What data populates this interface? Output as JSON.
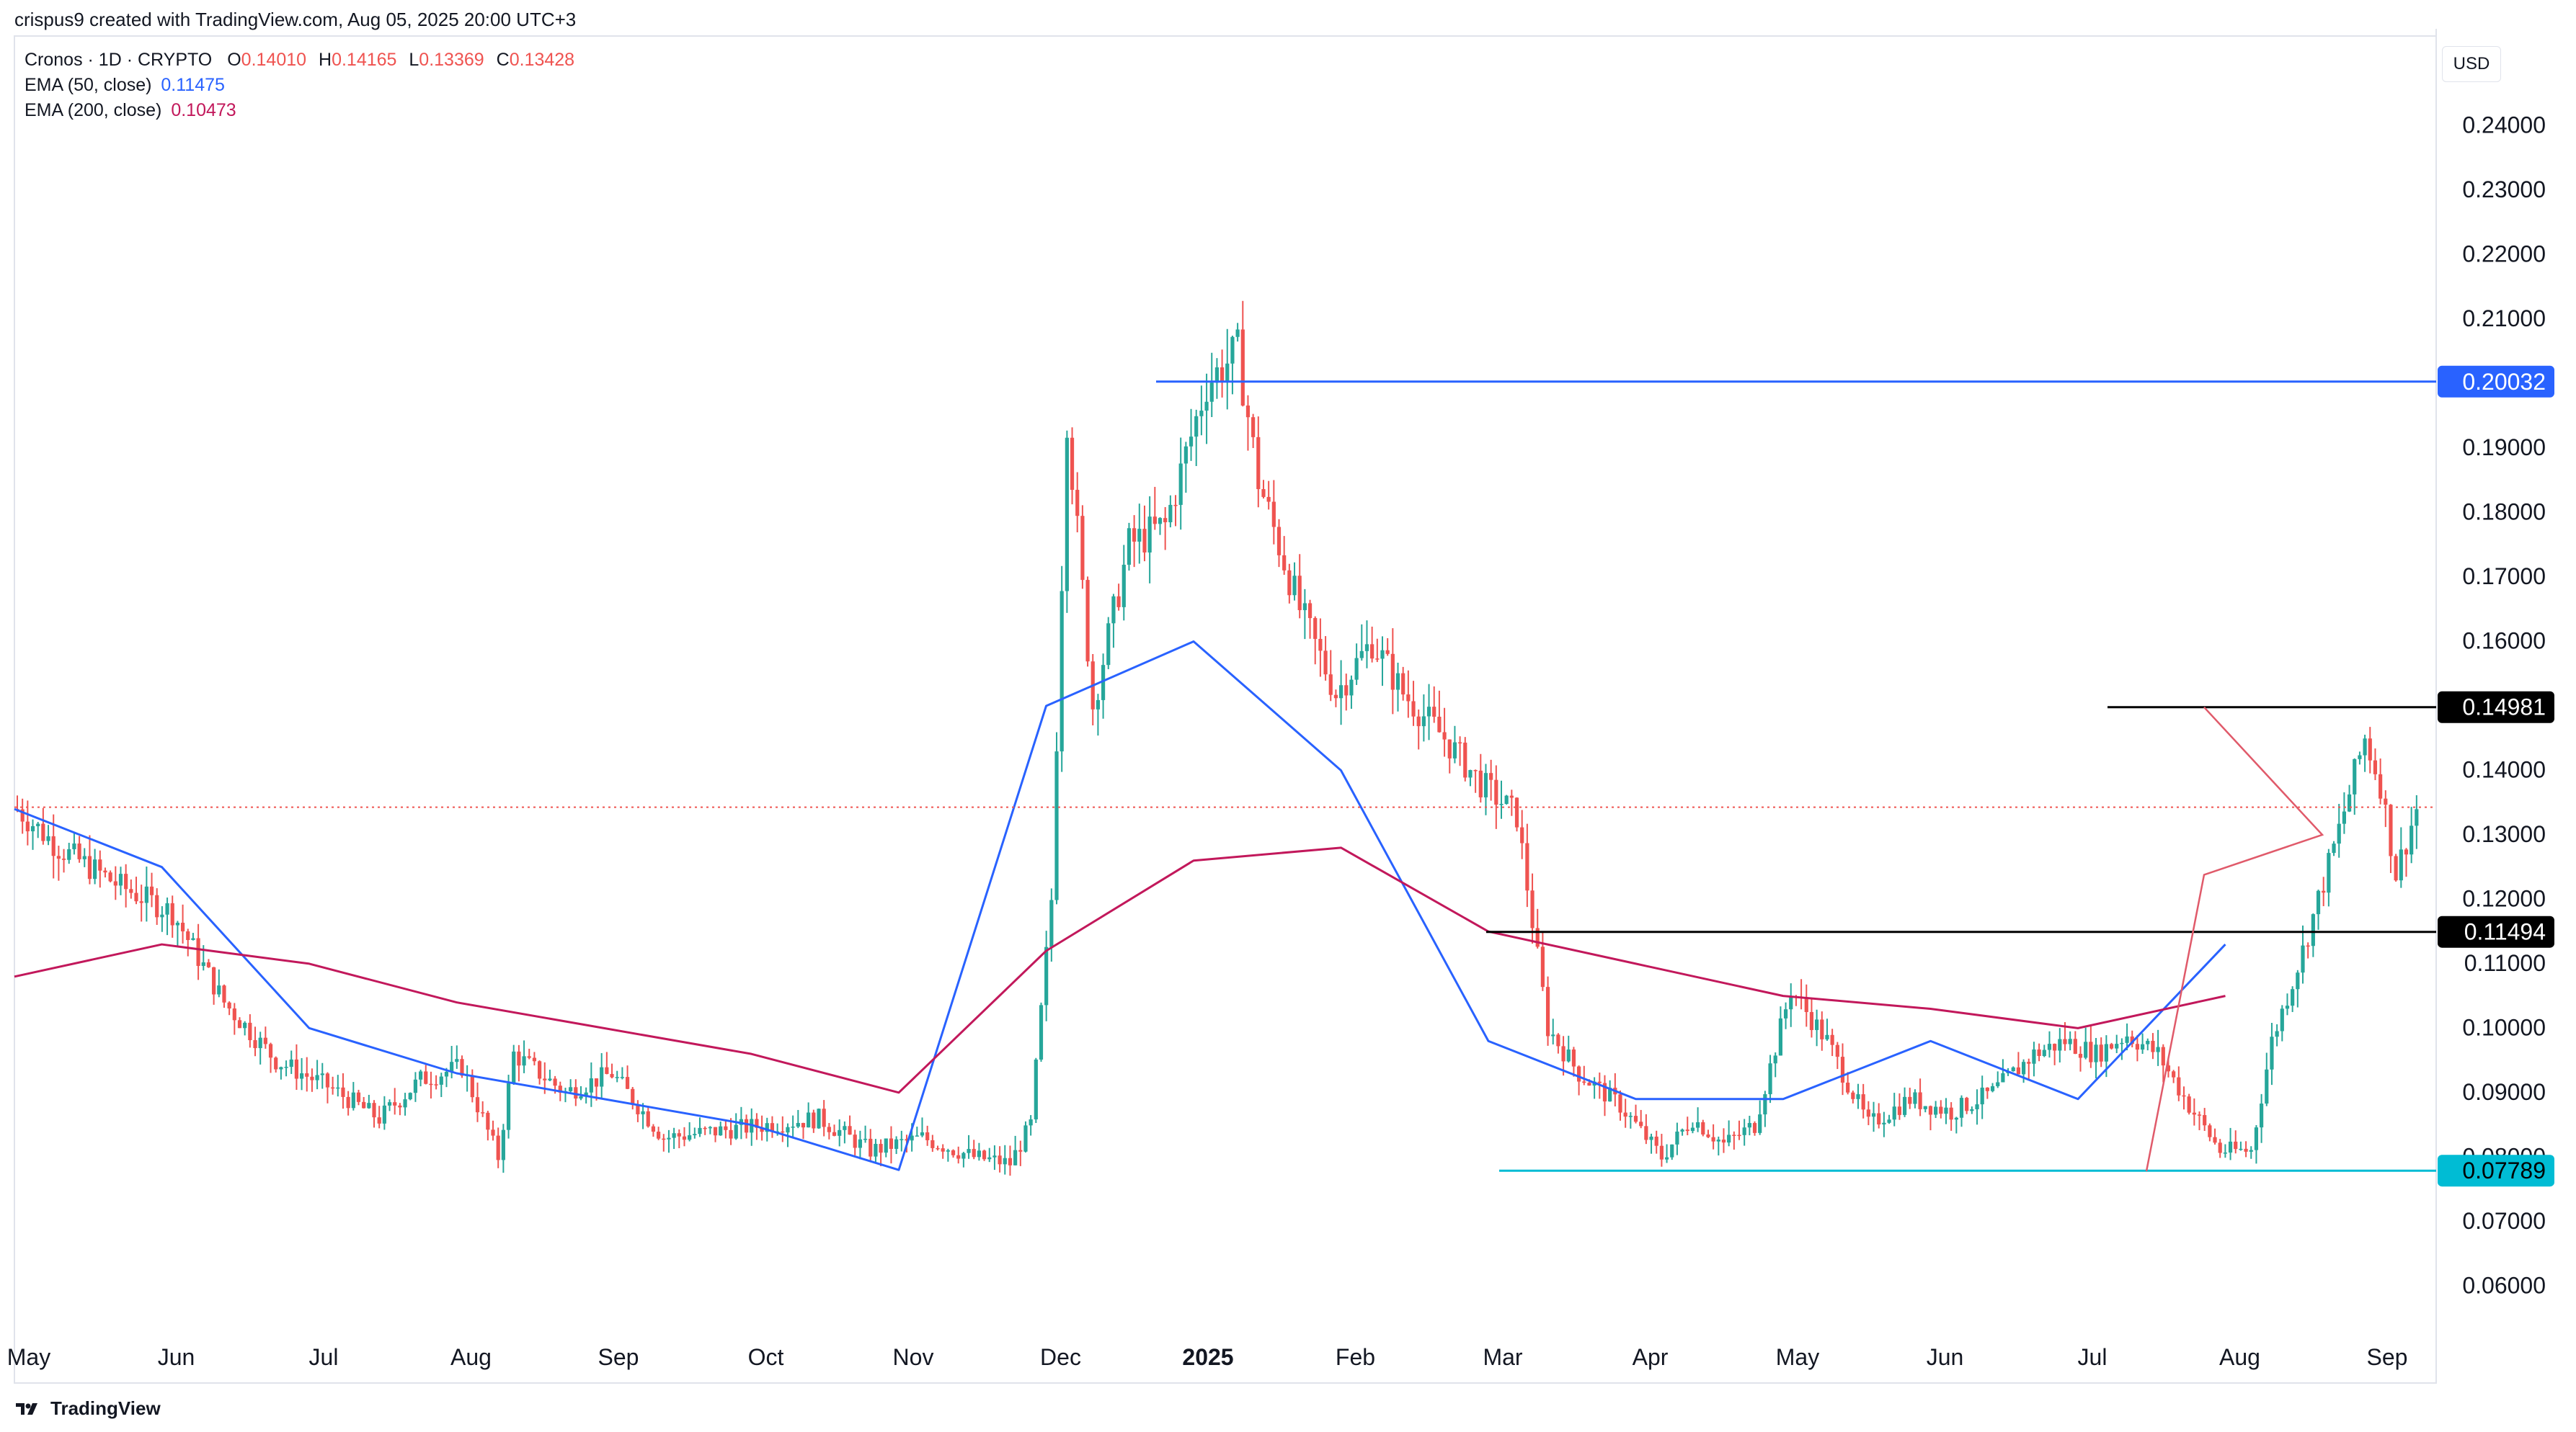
{
  "header": {
    "created_by": "crispus9 created with TradingView.com, Aug 05, 2025 20:00 UTC+3"
  },
  "legend": {
    "symbol": "Cronos · 1D · CRYPTO",
    "ohlc": {
      "O_label": "O",
      "O": "0.14010",
      "H_label": "H",
      "H": "0.14165",
      "L_label": "L",
      "L": "0.13369",
      "C_label": "C",
      "C": "0.13428"
    },
    "ema50": {
      "label": "EMA (50, close)",
      "value": "0.11475",
      "color": "#2962ff"
    },
    "ema200": {
      "label": "EMA (200, close)",
      "value": "0.10473",
      "color": "#c2185b"
    }
  },
  "currency_button": "USD",
  "footer": {
    "brand": "TradingView"
  },
  "colors": {
    "up": "#26a69a",
    "down": "#ef5350",
    "ema50": "#2962ff",
    "ema200": "#c2185b",
    "level_blue": "#2962ff",
    "level_cyan": "#00bcd4",
    "level_black": "#000000",
    "pattern": "#e05a6a"
  },
  "chart_data": {
    "type": "candlestick",
    "y_axis": {
      "min": 0.055,
      "max": 0.245,
      "ticks": [
        "0.24000",
        "0.23000",
        "0.22000",
        "0.21000",
        "0.20000",
        "0.19000",
        "0.18000",
        "0.17000",
        "0.16000",
        "0.15000",
        "0.14000",
        "0.13000",
        "0.12000",
        "0.11000",
        "0.10000",
        "0.09000",
        "0.08000",
        "0.07000",
        "0.06000"
      ]
    },
    "x_axis": {
      "labels": [
        "May",
        "Jun",
        "Jul",
        "Aug",
        "Sep",
        "Oct",
        "Nov",
        "Dec",
        "2025",
        "Feb",
        "Mar",
        "Apr",
        "May",
        "Jun",
        "Jul",
        "Aug",
        "Sep"
      ]
    },
    "price_tags": [
      {
        "value": "0.20032",
        "price": 0.20032,
        "style": "blue"
      },
      {
        "value": "0.14981",
        "price": 0.14981,
        "style": "black"
      },
      {
        "value": "0.11494",
        "price": 0.11494,
        "style": "black"
      },
      {
        "value": "0.07789",
        "price": 0.07789,
        "style": "cyan"
      }
    ],
    "last_close": 0.13428,
    "ema50_points": [
      [
        "May",
        0.134
      ],
      [
        "Jun",
        0.125
      ],
      [
        "Jul",
        0.1
      ],
      [
        "Aug",
        0.093
      ],
      [
        "Sep",
        0.089
      ],
      [
        "Oct",
        0.085
      ],
      [
        "Nov",
        0.078
      ],
      [
        "Dec",
        0.15
      ],
      [
        "2025",
        0.16
      ],
      [
        "Feb",
        0.14
      ],
      [
        "Mar",
        0.098
      ],
      [
        "Apr",
        0.089
      ],
      [
        "May",
        0.089
      ],
      [
        "Jun",
        0.098
      ],
      [
        "Jul",
        0.089
      ],
      [
        "Aug",
        0.113
      ]
    ],
    "ema200_points": [
      [
        "May",
        0.108
      ],
      [
        "Jun",
        0.113
      ],
      [
        "Jul",
        0.11
      ],
      [
        "Aug",
        0.104
      ],
      [
        "Sep",
        0.1
      ],
      [
        "Oct",
        0.096
      ],
      [
        "Nov",
        0.09
      ],
      [
        "Dec",
        0.112
      ],
      [
        "2025",
        0.126
      ],
      [
        "Feb",
        0.128
      ],
      [
        "Mar",
        0.115
      ],
      [
        "Apr",
        0.11
      ],
      [
        "May",
        0.105
      ],
      [
        "Jun",
        0.103
      ],
      [
        "Jul",
        0.1
      ],
      [
        "Aug",
        0.105
      ]
    ]
  }
}
